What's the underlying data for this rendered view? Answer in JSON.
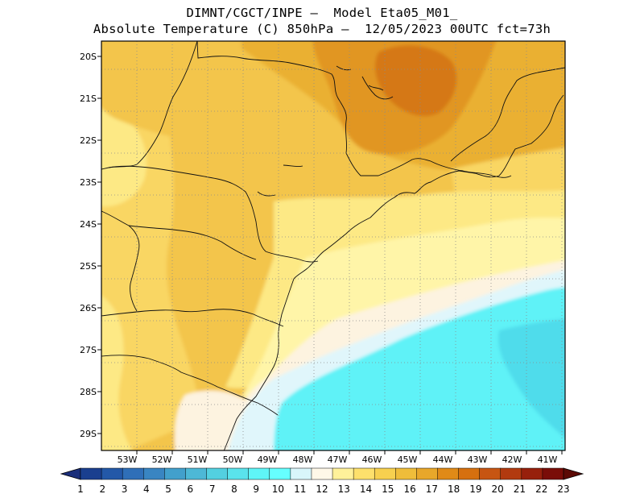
{
  "header": {
    "title_line1": "DIMNT/CGCT/INPE —  Model Eta05_M01_",
    "title_line2": "Absolute Temperature (C) 850hPa —  12/05/2023 00UTC fct=73h"
  },
  "map": {
    "lon_labels": [
      "53W",
      "52W",
      "51W",
      "50W",
      "49W",
      "48W",
      "47W",
      "46W",
      "45W",
      "44W",
      "43W",
      "42W",
      "41W"
    ],
    "lat_labels": [
      "20S",
      "21S",
      "22S",
      "23S",
      "24S",
      "25S",
      "26S",
      "27S",
      "28S",
      "29S"
    ],
    "gridlines": true
  },
  "colorbar": {
    "labels": [
      "1",
      "2",
      "3",
      "4",
      "5",
      "6",
      "7",
      "8",
      "9",
      "10",
      "11",
      "12",
      "13",
      "14",
      "15",
      "16",
      "17",
      "18",
      "19",
      "20",
      "21",
      "22",
      "23"
    ],
    "colors": [
      "#1a3f8f",
      "#2358a8",
      "#2f6fb8",
      "#3985c2",
      "#42a0cc",
      "#4db8d6",
      "#53d0e0",
      "#5ae3ec",
      "#5ff5f7",
      "#66ffff",
      "#d9f6fb",
      "#fff8e8",
      "#fff19a",
      "#fde06c",
      "#f7d04f",
      "#efbd3a",
      "#e8a72a",
      "#e08a17",
      "#d6700f",
      "#c75512",
      "#b23a0f",
      "#97200c",
      "#7a0d08"
    ],
    "arrow_left": "#1a2e7a",
    "arrow_right": "#5c0a05"
  },
  "legend_colors": {
    "t11": "#e0f6fb",
    "t12": "#fdf3e0",
    "t13": "#fff5a8",
    "t14": "#fde985",
    "t15": "#f9d664",
    "t16": "#f3c54b",
    "t17": "#eab033",
    "t18": "#e19620",
    "t19": "#d57812",
    "cyan": "#5ff2f7",
    "cyan_deep": "#4fdceb"
  }
}
